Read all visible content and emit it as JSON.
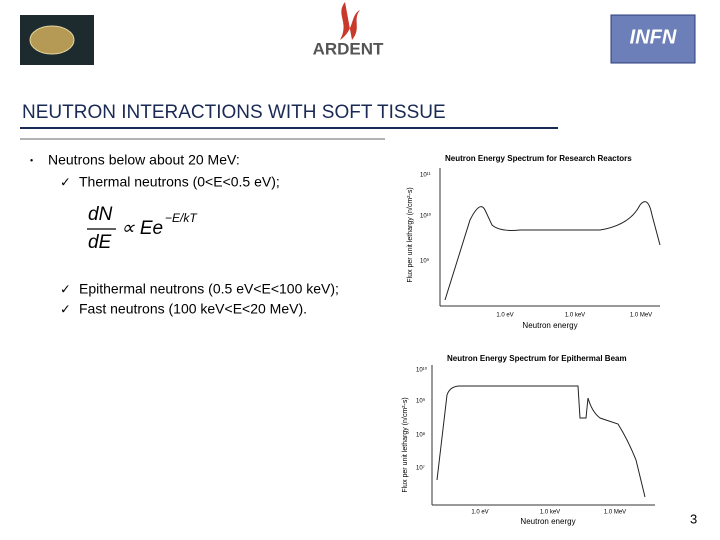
{
  "header": {
    "logo_center": "ARDENT",
    "logo_right": "INFN"
  },
  "title": "NEUTRON INTERACTIONS WITH SOFT TISSUE",
  "bullets": {
    "main": "Neutrons below about 20 MeV:",
    "items": [
      "Thermal neutrons (0<E<0.5 eV);",
      "Epithermal neutrons (0.5 eV<E<100 keV);",
      "Fast neutrons (100 keV<E<20 MeV)."
    ]
  },
  "formula": {
    "numerator": "dN",
    "denominator": "dE",
    "relation": "∝ Ee",
    "exponent": "−E/kT"
  },
  "figures": [
    {
      "title": "Neutron Energy Spectrum for Research Reactors",
      "y_label": "Flux per unit lethargy (n/cm²-s)",
      "x_label": "Neutron energy",
      "x_ticks": [
        "1.0 eV",
        "1.0 keV",
        "1.0 MeV"
      ],
      "y_ticks": [
        "10¹¹",
        "10¹⁰",
        "10⁹"
      ]
    },
    {
      "title": "Neutron Energy Spectrum for Epithermal Beam",
      "y_label": "Flux per unit lethargy (n/cm²-s)",
      "x_label": "Neutron energy",
      "x_ticks": [
        "1.0 eV",
        "1.0 keV",
        "1.0 MeV"
      ],
      "y_ticks": [
        "10¹⁰",
        "10⁹",
        "10⁸",
        "10⁷"
      ]
    }
  ],
  "page_number": "3"
}
